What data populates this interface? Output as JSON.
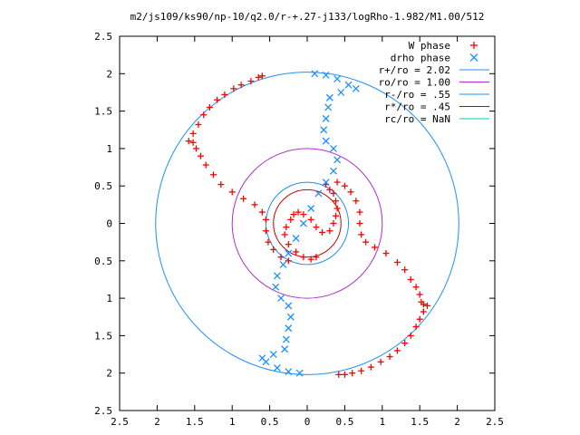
{
  "chart_data": {
    "type": "scatter",
    "title": "m2/js109/ks90/np-10/q2.0/r-+.27-j133/logRho-1.982/M1.00/512",
    "xlim": [
      -2.5,
      2.5
    ],
    "ylim": [
      -2.5,
      2.5
    ],
    "x_ticks": [
      -2.5,
      -2,
      -1.5,
      -1,
      -0.5,
      0,
      0.5,
      1,
      1.5,
      2,
      2.5
    ],
    "y_ticks": [
      -2.5,
      -2,
      -1.5,
      -1,
      -0.5,
      0,
      0.5,
      1,
      1.5,
      2,
      2.5
    ],
    "x_tick_labels": [
      "2.5",
      "2",
      "1.5",
      "1",
      "0.5",
      "0",
      "0.5",
      "1",
      "1.5",
      "2",
      "2.5"
    ],
    "y_tick_labels": [
      "2.5",
      "2",
      "1.5",
      "1",
      "0.5",
      "0",
      "0.5",
      "1",
      "1.5",
      "2",
      "2.5"
    ],
    "grid": false,
    "legend_position": "top-right",
    "series": [
      {
        "name": "W phase",
        "kind": "points",
        "marker": "plus",
        "color": "#ff0000",
        "points": [
          [
            0.25,
            0.52
          ],
          [
            0.3,
            0.45
          ],
          [
            0.35,
            0.4
          ],
          [
            0.38,
            0.3
          ],
          [
            0.4,
            0.2
          ],
          [
            0.38,
            0.1
          ],
          [
            0.35,
            0.0
          ],
          [
            0.3,
            -0.1
          ],
          [
            0.2,
            -0.12
          ],
          [
            0.12,
            -0.05
          ],
          [
            0.05,
            0.05
          ],
          [
            -0.05,
            0.12
          ],
          [
            -0.12,
            0.15
          ],
          [
            -0.18,
            0.12
          ],
          [
            -0.22,
            0.05
          ],
          [
            -0.28,
            -0.05
          ],
          [
            -0.3,
            -0.15
          ],
          [
            -0.25,
            -0.28
          ],
          [
            -0.15,
            -0.38
          ],
          [
            -0.05,
            -0.45
          ],
          [
            0.05,
            -0.48
          ],
          [
            0.12,
            -0.45
          ],
          [
            0.4,
            0.55
          ],
          [
            0.5,
            0.5
          ],
          [
            0.58,
            0.42
          ],
          [
            0.65,
            0.3
          ],
          [
            0.7,
            0.15
          ],
          [
            0.7,
            0.0
          ],
          [
            0.72,
            -0.15
          ],
          [
            0.78,
            -0.25
          ],
          [
            0.9,
            -0.32
          ],
          [
            1.05,
            -0.4
          ],
          [
            1.2,
            -0.52
          ],
          [
            1.3,
            -0.62
          ],
          [
            1.38,
            -0.75
          ],
          [
            1.45,
            -0.85
          ],
          [
            1.5,
            -0.95
          ],
          [
            1.52,
            -1.05
          ],
          [
            1.55,
            -1.08
          ],
          [
            1.6,
            -1.1
          ],
          [
            1.55,
            -1.18
          ],
          [
            1.5,
            -1.28
          ],
          [
            1.45,
            -1.38
          ],
          [
            1.38,
            -1.5
          ],
          [
            1.3,
            -1.6
          ],
          [
            1.2,
            -1.7
          ],
          [
            1.1,
            -1.78
          ],
          [
            0.98,
            -1.85
          ],
          [
            0.85,
            -1.92
          ],
          [
            0.72,
            -1.97
          ],
          [
            0.6,
            -2.0
          ],
          [
            0.5,
            -2.02
          ],
          [
            0.42,
            -2.02
          ],
          [
            -0.25,
            -0.5
          ],
          [
            -0.35,
            -0.45
          ],
          [
            -0.45,
            -0.35
          ],
          [
            -0.52,
            -0.25
          ],
          [
            -0.55,
            -0.1
          ],
          [
            -0.55,
            0.05
          ],
          [
            -0.6,
            0.15
          ],
          [
            -0.7,
            0.25
          ],
          [
            -0.85,
            0.33
          ],
          [
            -1.0,
            0.42
          ],
          [
            -1.15,
            0.52
          ],
          [
            -1.25,
            0.65
          ],
          [
            -1.35,
            0.78
          ],
          [
            -1.42,
            0.9
          ],
          [
            -1.48,
            1.0
          ],
          [
            -1.52,
            1.08
          ],
          [
            -1.58,
            1.1
          ],
          [
            -1.52,
            1.2
          ],
          [
            -1.45,
            1.32
          ],
          [
            -1.38,
            1.45
          ],
          [
            -1.3,
            1.55
          ],
          [
            -1.2,
            1.65
          ],
          [
            -1.1,
            1.72
          ],
          [
            -0.98,
            1.8
          ],
          [
            -0.88,
            1.85
          ],
          [
            -0.75,
            1.9
          ],
          [
            -0.65,
            1.95
          ],
          [
            -0.6,
            1.97
          ]
        ]
      },
      {
        "name": "drho phase",
        "kind": "points",
        "marker": "x",
        "color": "#1e90ff",
        "points": [
          [
            0.1,
            2.0
          ],
          [
            0.25,
            1.98
          ],
          [
            0.4,
            1.93
          ],
          [
            0.55,
            1.85
          ],
          [
            0.65,
            1.8
          ],
          [
            0.45,
            1.75
          ],
          [
            0.3,
            1.68
          ],
          [
            0.28,
            1.55
          ],
          [
            0.25,
            1.4
          ],
          [
            0.22,
            1.25
          ],
          [
            0.25,
            1.1
          ],
          [
            0.35,
            1.0
          ],
          [
            0.4,
            0.85
          ],
          [
            0.35,
            0.7
          ],
          [
            0.25,
            0.55
          ],
          [
            0.15,
            0.4
          ],
          [
            0.05,
            0.2
          ],
          [
            -0.05,
            0.0
          ],
          [
            -0.15,
            -0.2
          ],
          [
            -0.25,
            -0.4
          ],
          [
            -0.32,
            -0.55
          ],
          [
            -0.4,
            -0.7
          ],
          [
            -0.42,
            -0.85
          ],
          [
            -0.35,
            -1.0
          ],
          [
            -0.25,
            -1.1
          ],
          [
            -0.22,
            -1.25
          ],
          [
            -0.25,
            -1.4
          ],
          [
            -0.28,
            -1.55
          ],
          [
            -0.3,
            -1.68
          ],
          [
            -0.45,
            -1.75
          ],
          [
            -0.6,
            -1.8
          ],
          [
            -0.55,
            -1.85
          ],
          [
            -0.4,
            -1.93
          ],
          [
            -0.25,
            -1.98
          ],
          [
            -0.1,
            -2.0
          ]
        ]
      },
      {
        "name": "r+/ro = 2.02",
        "kind": "circle",
        "radius": 2.02,
        "color": "#1e90ff"
      },
      {
        "name": "ro/ro = 1.00",
        "kind": "circle",
        "radius": 1.0,
        "color": "#b030c8"
      },
      {
        "name": "r-/ro = .55",
        "kind": "circle",
        "radius": 0.55,
        "color": "#1e90ff"
      },
      {
        "name": "r*/ro = .45",
        "kind": "circle",
        "radius": 0.45,
        "color": "#c80000"
      },
      {
        "name": "rc/ro = NaN",
        "kind": "circle",
        "radius": null,
        "color": "#00c8c8"
      }
    ]
  }
}
